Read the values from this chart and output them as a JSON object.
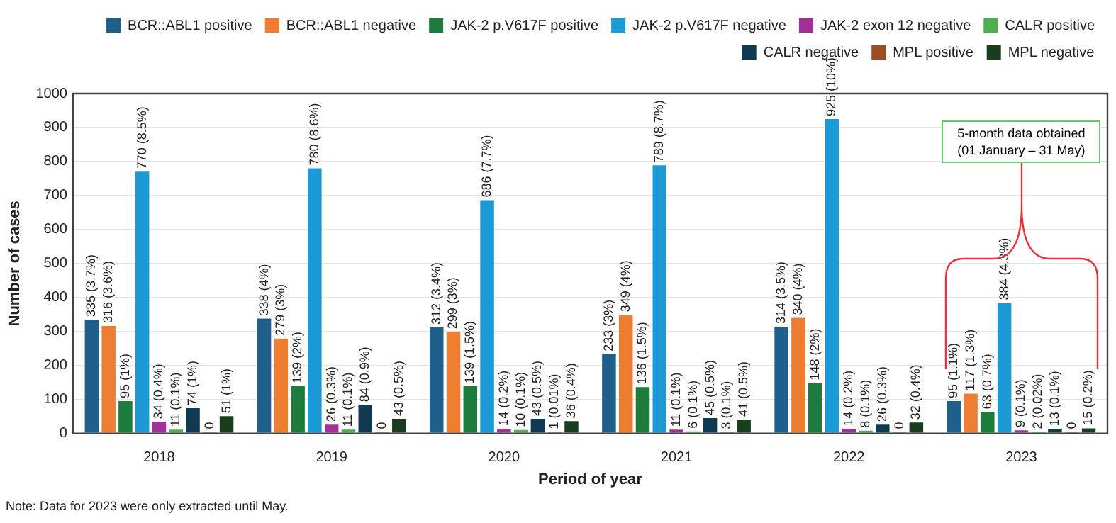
{
  "chart_data": {
    "type": "bar",
    "xlabel": "Period of year",
    "ylabel": "Number of cases",
    "categories": [
      "2018",
      "2019",
      "2020",
      "2021",
      "2022",
      "2023"
    ],
    "ylim": [
      0,
      1000
    ],
    "yticks": [
      0,
      100,
      200,
      300,
      400,
      500,
      600,
      700,
      800,
      900,
      1000
    ],
    "grid": "y",
    "legend": "top right",
    "data_labels": false,
    "series": [
      {
        "name": "BCR::ABL1 positive",
        "color": "#1f5f8b",
        "values": [
          335,
          338,
          312,
          233,
          314,
          95
        ],
        "value_labels": [
          "335 (3.7%)",
          "338 (4%)",
          "312 (3.4%)",
          "233 (3%)",
          "314 (3.5%)",
          "95 (1.1%)"
        ]
      },
      {
        "name": "BCR::ABL1 negative",
        "color": "#ed7d31",
        "values": [
          316,
          279,
          299,
          349,
          340,
          117
        ],
        "value_labels": [
          "316 (3.6%)",
          "279 (3%)",
          "299 (3%)",
          "349 (4%)",
          "340 (4%)",
          "117 (1.3%)"
        ]
      },
      {
        "name": "JAK-2 p.V617F positive",
        "color": "#1e7b3e",
        "values": [
          95,
          139,
          139,
          136,
          148,
          63
        ],
        "value_labels": [
          "95 (1%)",
          "139 (2%)",
          "139 (1.5%)",
          "136 (1.5%)",
          "148 (2%)",
          "63 (0.7%)"
        ]
      },
      {
        "name": "JAK-2 p.V617F negative",
        "color": "#1b9ad6",
        "values": [
          770,
          780,
          686,
          789,
          925,
          384
        ],
        "value_labels": [
          "770 (8.5%)",
          "780 (8.6%)",
          "686 (7.7%)",
          "789 (8.7%)",
          "925 (10%)",
          "384 (4.3%)"
        ]
      },
      {
        "name": "JAK-2 exon 12 negative",
        "color": "#a2309c",
        "values": [
          34,
          26,
          14,
          11,
          14,
          9
        ],
        "value_labels": [
          "34 (0.4%)",
          "26 (0.3%)",
          "14 (0.2%)",
          "11 (0.1%)",
          "14 (0.2%)",
          "9 (0.1%)"
        ]
      },
      {
        "name": "CALR positive",
        "color": "#4caf50",
        "values": [
          11,
          11,
          10,
          6,
          8,
          2
        ],
        "value_labels": [
          "11 (0.1%)",
          "11 (0.1%)",
          "10 (0.1%)",
          "6 (0.1%)",
          "8 (0.1%)",
          "2 (0.02%)"
        ]
      },
      {
        "name": "CALR negative",
        "color": "#103a52",
        "values": [
          74,
          84,
          43,
          45,
          26,
          13
        ],
        "value_labels": [
          "74 (1%)",
          "84 (0.9%)",
          "43 (0.5%)",
          "45 (0.5%)",
          "26 (0.3%)",
          "13 (0.1%)"
        ]
      },
      {
        "name": "MPL positive",
        "color": "#9e4a25",
        "values": [
          0,
          0,
          1,
          3,
          0,
          0
        ],
        "value_labels": [
          "0",
          "0",
          "1 (0.01%)",
          "3 (0.1%)",
          "0",
          "0"
        ]
      },
      {
        "name": "MPL negative",
        "color": "#1b3d1f",
        "values": [
          51,
          43,
          36,
          41,
          32,
          15
        ],
        "value_labels": [
          "51 (1%)",
          "43 (0.5%)",
          "36 (0.4%)",
          "41 (0.5%)",
          "32 (0.4%)",
          "15 (0.2%)"
        ]
      }
    ],
    "annotations": [
      "5-month data obtained (01 January – 31 May)",
      "Note: Data for 2023 were only extracted until May."
    ]
  }
}
